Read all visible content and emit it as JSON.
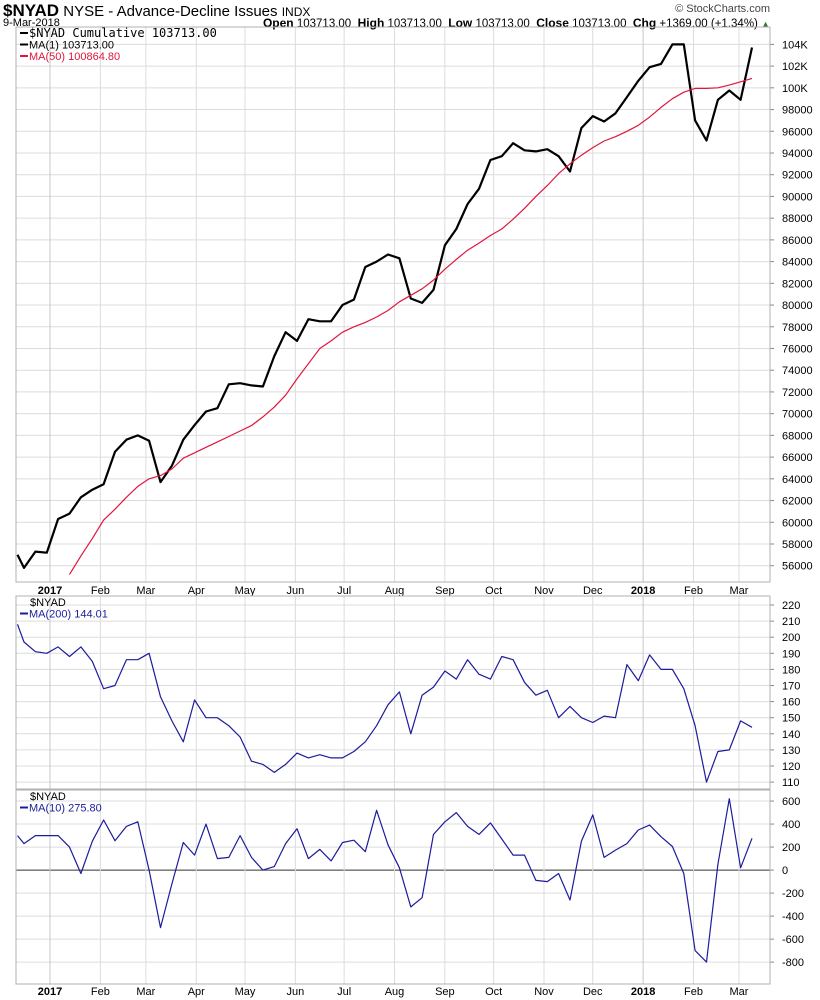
{
  "header": {
    "symbol": "$NYAD",
    "name": "NYSE - Advance-Decline Issues",
    "exchange": "INDX",
    "date": "9-Mar-2018",
    "copyright": "© StockCharts.com",
    "open_label": "Open",
    "open": "103713.00",
    "high_label": "High",
    "high": "103713.00",
    "low_label": "Low",
    "low": "103713.00",
    "close_label": "Close",
    "close": "103713.00",
    "chg_label": "Chg",
    "chg": "+1369.00 (+1.34%)",
    "chg_icon": "triangle-up-icon"
  },
  "colors": {
    "price": "#000000",
    "ma50": "#e0163c",
    "indicator": "#1c1c9c",
    "grid": "#dcdcdc",
    "frame": "#b0b0b0"
  },
  "chart_data": [
    {
      "type": "line",
      "legend": [
        "$NYAD Cumulative 103713.00",
        "MA(1) 103713.00",
        "MA(50) 100864.80"
      ],
      "legend_placement": "top-left",
      "ylim": [
        54500,
        105600
      ],
      "yticks": [
        56000,
        58000,
        60000,
        62000,
        64000,
        66000,
        68000,
        70000,
        72000,
        74000,
        76000,
        78000,
        80000,
        82000,
        84000,
        86000,
        88000,
        90000,
        92000,
        94000,
        96000,
        98000,
        100000,
        102000,
        104000
      ],
      "ytick_labels": [
        "56000",
        "58000",
        "60000",
        "62000",
        "64000",
        "66000",
        "68000",
        "70000",
        "72000",
        "74000",
        "76000",
        "78000",
        "80000",
        "82000",
        "84000",
        "86000",
        "88000",
        "90000",
        "92000",
        "94000",
        "96000",
        "98000",
        "100K",
        "102K",
        "104K"
      ],
      "grid": true,
      "series": [
        {
          "name": "$NYAD Cumulative",
          "color": "#000000",
          "values": [
            57000,
            55800,
            57300,
            57200,
            60300,
            60800,
            62300,
            63000,
            63500,
            66500,
            67600,
            68000,
            67500,
            63700,
            65200,
            67600,
            68950,
            70200,
            70500,
            72700,
            72800,
            72600,
            72500,
            75300,
            77500,
            76700,
            78700,
            78500,
            78500,
            80000,
            80500,
            83500,
            84000,
            84650,
            84300,
            80600,
            80200,
            81400,
            85500,
            87000,
            89300,
            90700,
            93350,
            93700,
            94900,
            94250,
            94150,
            94350,
            93700,
            92300,
            96300,
            97400,
            96900,
            97650,
            99150,
            100650,
            101900,
            102200,
            104000,
            104000,
            97000,
            95150,
            98900,
            99750,
            98900,
            103713
          ]
        },
        {
          "name": "MA(50)",
          "color": "#e0163c",
          "values": [
            null,
            null,
            null,
            null,
            null,
            55200,
            56900,
            58500,
            60200,
            61200,
            62300,
            63300,
            64000,
            64300,
            64900,
            65900,
            66400,
            66900,
            67400,
            67900,
            68400,
            68900,
            69700,
            70600,
            71700,
            73200,
            74600,
            76000,
            76700,
            77500,
            78000,
            78400,
            78900,
            79500,
            80300,
            80900,
            81500,
            82300,
            83300,
            84200,
            85050,
            85700,
            86400,
            87000,
            87900,
            88900,
            90000,
            91000,
            92100,
            93000,
            93800,
            94500,
            95100,
            95500,
            96000,
            96550,
            97300,
            98200,
            99000,
            99600,
            99950,
            99950,
            100000,
            100250,
            100550,
            100864
          ]
        }
      ]
    },
    {
      "type": "line",
      "legend": [
        "$NYAD",
        "MA(200) 144.01"
      ],
      "legend_placement": "top-left",
      "ylim": [
        105.7,
        225.6
      ],
      "yticks": [
        110,
        120,
        130,
        140,
        150,
        160,
        170,
        180,
        190,
        200,
        210,
        220
      ],
      "grid": true,
      "series": [
        {
          "name": "MA(200)",
          "color": "#1c1c9c",
          "values": [
            208,
            197,
            191,
            190,
            194,
            188,
            194,
            185,
            168,
            170,
            186,
            186,
            190,
            163,
            148,
            135,
            161,
            150,
            150,
            145,
            138,
            123,
            121,
            116,
            121,
            128,
            125,
            127,
            125,
            125,
            129,
            135,
            145,
            158,
            166,
            140,
            164,
            169,
            179,
            174,
            186,
            177,
            174,
            188,
            186,
            172,
            164,
            167,
            150,
            157,
            150,
            147,
            151,
            150,
            183,
            173,
            189,
            180,
            180,
            168,
            145,
            110,
            129,
            130,
            148,
            144
          ]
        }
      ]
    },
    {
      "type": "line",
      "legend": [
        "$NYAD",
        "MA(10) 275.80"
      ],
      "legend_placement": "top-left",
      "ylim": [
        -990,
        696
      ],
      "yticks": [
        -800,
        -600,
        -400,
        -200,
        0,
        200,
        400,
        600
      ],
      "grid": true,
      "zero_line": true,
      "series": [
        {
          "name": "MA(10)",
          "color": "#1c1c9c",
          "values": [
            300,
            230,
            300,
            300,
            300,
            200,
            -30,
            250,
            435,
            255,
            380,
            420,
            0,
            -500,
            -120,
            240,
            130,
            400,
            100,
            110,
            300,
            110,
            0,
            30,
            230,
            360,
            100,
            180,
            80,
            240,
            260,
            160,
            520,
            220,
            20,
            -320,
            -240,
            310,
            420,
            500,
            380,
            310,
            410,
            270,
            130,
            130,
            -90,
            -100,
            -30,
            -260,
            250,
            480,
            110,
            174,
            230,
            348,
            391,
            290,
            205,
            -30,
            -700,
            -800,
            50,
            620,
            20,
            276
          ]
        }
      ]
    }
  ],
  "dates": [
    "2016-12-12",
    "2016-12-16",
    "2016-12-23",
    "2016-12-30",
    "2017-01-06",
    "2017-01-13",
    "2017-01-20",
    "2017-01-27",
    "2017-02-03",
    "2017-02-10",
    "2017-02-17",
    "2017-02-24",
    "2017-03-03",
    "2017-03-10",
    "2017-03-17",
    "2017-03-24",
    "2017-03-31",
    "2017-04-07",
    "2017-04-14",
    "2017-04-21",
    "2017-04-28",
    "2017-05-05",
    "2017-05-12",
    "2017-05-19",
    "2017-05-26",
    "2017-06-02",
    "2017-06-09",
    "2017-06-16",
    "2017-06-23",
    "2017-06-30",
    "2017-07-07",
    "2017-07-14",
    "2017-07-21",
    "2017-07-28",
    "2017-08-04",
    "2017-08-11",
    "2017-08-18",
    "2017-08-25",
    "2017-09-01",
    "2017-09-08",
    "2017-09-15",
    "2017-09-22",
    "2017-09-29",
    "2017-10-06",
    "2017-10-13",
    "2017-10-20",
    "2017-10-27",
    "2017-11-03",
    "2017-11-10",
    "2017-11-17",
    "2017-11-24",
    "2017-12-01",
    "2017-12-08",
    "2017-12-15",
    "2017-12-22",
    "2017-12-29",
    "2018-01-05",
    "2018-01-12",
    "2018-01-19",
    "2018-01-26",
    "2018-02-02",
    "2018-02-09",
    "2018-02-16",
    "2018-02-23",
    "2018-03-02",
    "2018-03-09"
  ],
  "x_ticks": [
    {
      "date": "2017-01-01",
      "label": "2017",
      "bold": true
    },
    {
      "date": "2017-02-01",
      "label": "Feb"
    },
    {
      "date": "2017-03-01",
      "label": "Mar"
    },
    {
      "date": "2017-04-01",
      "label": "Apr"
    },
    {
      "date": "2017-05-01",
      "label": "May"
    },
    {
      "date": "2017-06-01",
      "label": "Jun"
    },
    {
      "date": "2017-07-01",
      "label": "Jul"
    },
    {
      "date": "2017-08-01",
      "label": "Aug"
    },
    {
      "date": "2017-09-01",
      "label": "Sep"
    },
    {
      "date": "2017-10-01",
      "label": "Oct"
    },
    {
      "date": "2017-11-01",
      "label": "Nov"
    },
    {
      "date": "2017-12-01",
      "label": "Dec"
    },
    {
      "date": "2018-01-01",
      "label": "2018",
      "bold": true
    },
    {
      "date": "2018-02-01",
      "label": "Feb"
    },
    {
      "date": "2018-03-01",
      "label": "Mar"
    }
  ]
}
